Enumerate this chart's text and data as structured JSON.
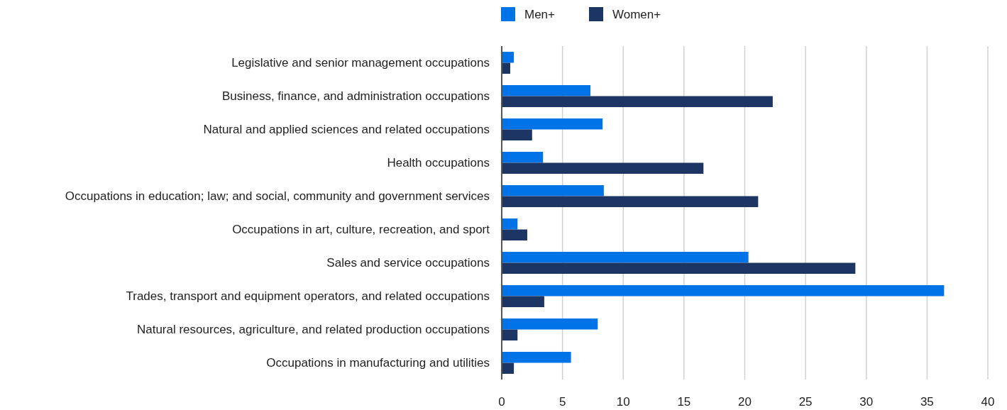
{
  "chart_data": {
    "type": "bar",
    "orientation": "horizontal",
    "categories": [
      "Legislative and senior management occupations",
      "Business, finance, and administration occupations",
      "Natural and applied sciences and related occupations",
      "Health occupations",
      "Occupations in education; law; and social, community and government services",
      "Occupations in art, culture, recreation, and sport",
      "Sales and service occupations",
      "Trades, transport and equipment operators, and related occupations",
      "Natural resources, agriculture, and related production occupations",
      "Occupations in manufacturing and utilities"
    ],
    "series": [
      {
        "name": "Men+",
        "color": "#0073e6",
        "values": [
          1.0,
          7.3,
          8.3,
          3.4,
          8.4,
          1.3,
          20.3,
          36.4,
          7.9,
          5.7
        ]
      },
      {
        "name": "Women+",
        "color": "#1c3563",
        "values": [
          0.7,
          22.3,
          2.5,
          16.6,
          21.1,
          2.1,
          29.1,
          3.5,
          1.3,
          1.0
        ]
      }
    ],
    "xlim": [
      0,
      40
    ],
    "xticks": [
      0,
      5,
      10,
      15,
      20,
      25,
      30,
      35,
      40
    ],
    "grid": "x",
    "legend": "top"
  }
}
